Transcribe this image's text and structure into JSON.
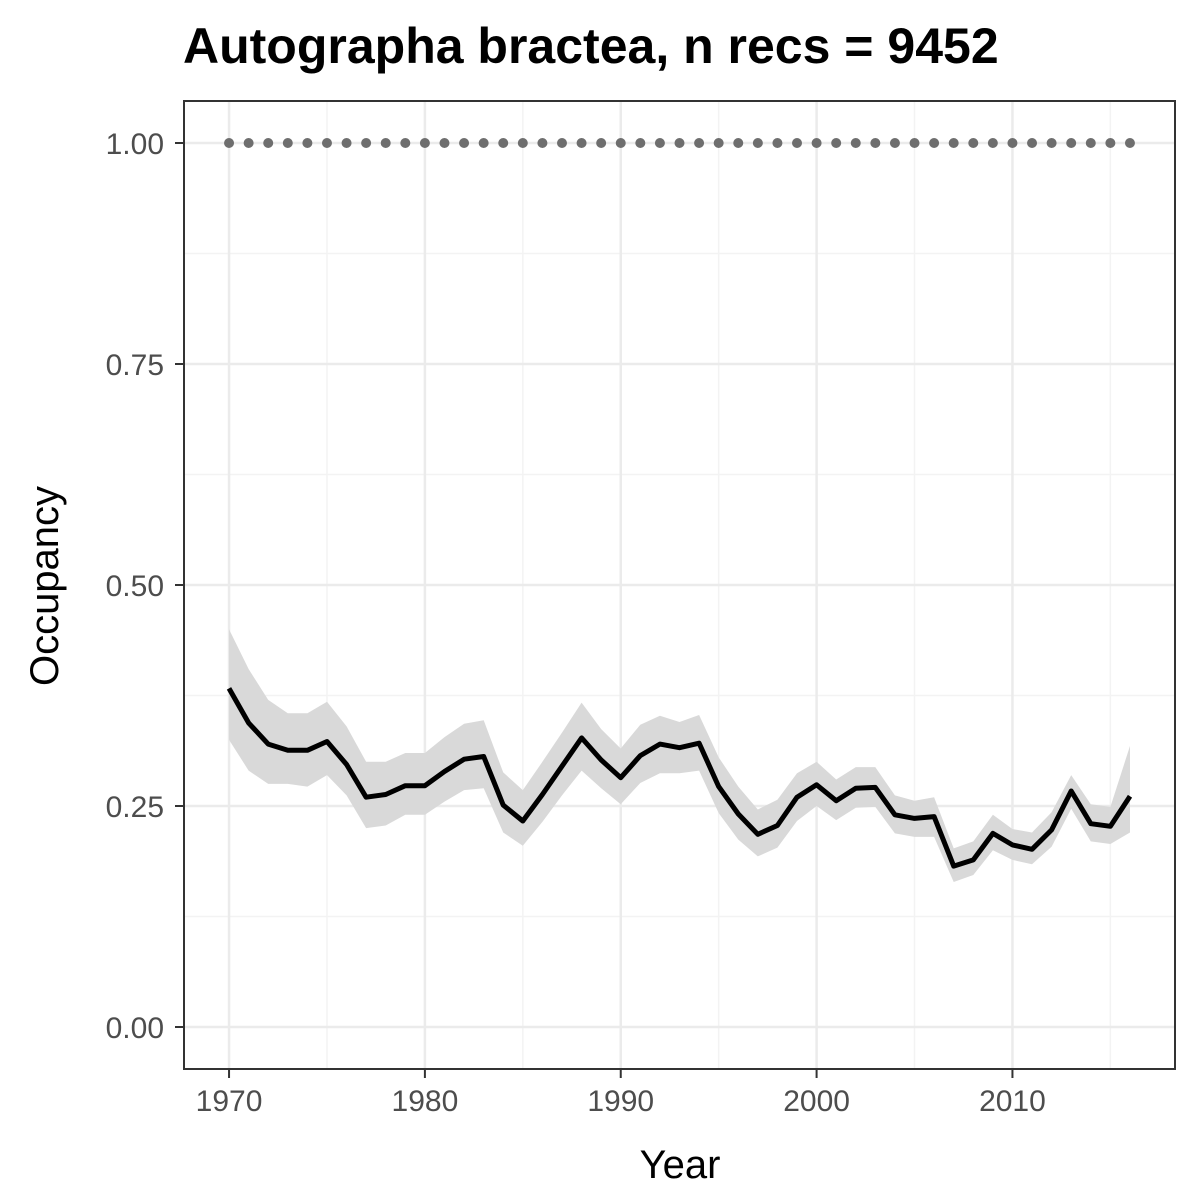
{
  "chart_data": {
    "type": "line",
    "title": "Autographa bractea, n recs = 9452",
    "xlabel": "Year",
    "ylabel": "Occupancy",
    "xlim": [
      1967.7,
      2018.3
    ],
    "ylim": [
      -0.0475,
      1.0475
    ],
    "x_ticks": [
      1970,
      1980,
      1990,
      2000,
      2010
    ],
    "x_tick_labels": [
      "1970",
      "1980",
      "1990",
      "2000",
      "2010"
    ],
    "y_ticks": [
      0,
      0.25,
      0.5,
      0.75,
      1
    ],
    "y_tick_labels": [
      "0.00",
      "0.25",
      "0.50",
      "0.75",
      "1.00"
    ],
    "grid": true,
    "legend": "none",
    "colors": {
      "line": "#000000",
      "ribbon": "#d9d9d9",
      "dots": "#6e6e6e",
      "grid_major": "#ebebeb",
      "grid_minor": "#f3f3f3",
      "panel_border": "#333333"
    },
    "x": [
      1970,
      1971,
      1972,
      1973,
      1974,
      1975,
      1976,
      1977,
      1978,
      1979,
      1980,
      1981,
      1982,
      1983,
      1984,
      1985,
      1986,
      1987,
      1988,
      1989,
      1990,
      1991,
      1992,
      1993,
      1994,
      1995,
      1996,
      1997,
      1998,
      1999,
      2000,
      2001,
      2002,
      2003,
      2004,
      2005,
      2006,
      2007,
      2008,
      2009,
      2010,
      2011,
      2012,
      2013,
      2014,
      2015,
      2016
    ],
    "series": [
      {
        "values": [
          0.383,
          0.344,
          0.32,
          0.313,
          0.313,
          0.323,
          0.297,
          0.26,
          0.263,
          0.273,
          0.273,
          0.289,
          0.303,
          0.306,
          0.251,
          0.233,
          0.263,
          0.295,
          0.327,
          0.302,
          0.282,
          0.307,
          0.32,
          0.316,
          0.321,
          0.272,
          0.241,
          0.218,
          0.228,
          0.26,
          0.274,
          0.256,
          0.27,
          0.271,
          0.24,
          0.236,
          0.238,
          0.182,
          0.189,
          0.219,
          0.206,
          0.201,
          0.223,
          0.267,
          0.23,
          0.227,
          0.261
        ],
        "lower": [
          0.325,
          0.29,
          0.275,
          0.275,
          0.272,
          0.285,
          0.262,
          0.225,
          0.228,
          0.24,
          0.24,
          0.255,
          0.268,
          0.27,
          0.22,
          0.205,
          0.232,
          0.262,
          0.29,
          0.27,
          0.252,
          0.276,
          0.287,
          0.287,
          0.29,
          0.242,
          0.212,
          0.193,
          0.203,
          0.233,
          0.25,
          0.234,
          0.248,
          0.249,
          0.219,
          0.215,
          0.215,
          0.164,
          0.172,
          0.2,
          0.189,
          0.184,
          0.204,
          0.247,
          0.21,
          0.207,
          0.22
        ],
        "upper": [
          0.45,
          0.405,
          0.37,
          0.355,
          0.355,
          0.368,
          0.34,
          0.3,
          0.3,
          0.31,
          0.31,
          0.328,
          0.343,
          0.347,
          0.288,
          0.268,
          0.3,
          0.333,
          0.367,
          0.337,
          0.315,
          0.342,
          0.352,
          0.345,
          0.353,
          0.305,
          0.272,
          0.246,
          0.257,
          0.287,
          0.3,
          0.28,
          0.294,
          0.294,
          0.262,
          0.256,
          0.26,
          0.202,
          0.21,
          0.24,
          0.224,
          0.22,
          0.243,
          0.285,
          0.252,
          0.249,
          0.318
        ]
      },
      {
        "values": [
          1,
          1,
          1,
          1,
          1,
          1,
          1,
          1,
          1,
          1,
          1,
          1,
          1,
          1,
          1,
          1,
          1,
          1,
          1,
          1,
          1,
          1,
          1,
          1,
          1,
          1,
          1,
          1,
          1,
          1,
          1,
          1,
          1,
          1,
          1,
          1,
          1,
          1,
          1,
          1,
          1,
          1,
          1,
          1,
          1,
          1,
          1
        ]
      }
    ]
  }
}
